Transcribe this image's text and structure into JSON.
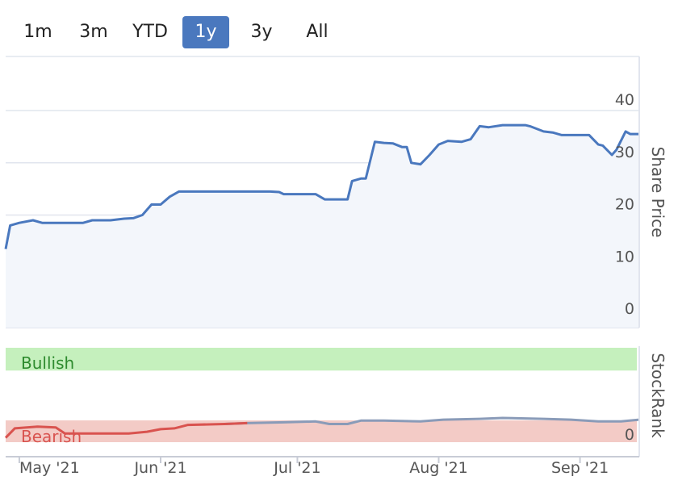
{
  "range_selector": {
    "buttons": [
      {
        "label": "1m",
        "active": false
      },
      {
        "label": "3m",
        "active": false
      },
      {
        "label": "YTD",
        "active": false
      },
      {
        "label": "1y",
        "active": true
      },
      {
        "label": "3y",
        "active": false
      },
      {
        "label": "All",
        "active": false
      }
    ]
  },
  "colors": {
    "price_line": "#4a78be",
    "price_fill": "#f3f6fb",
    "grid": "#e1e5ee",
    "bullish_band": "#c5f0bd",
    "bullish_text": "#2e8b2e",
    "bearish_band": "#f3cbc6",
    "bearish_text": "#d9534f",
    "rank_red": "#d9534f",
    "rank_gray": "#8a9bb8",
    "active_button": "#4a78be"
  },
  "chart_data": [
    {
      "type": "area",
      "ylabel": "Share Price",
      "ylim": [
        0,
        40
      ],
      "yticks": [
        0,
        10,
        20,
        30,
        40
      ],
      "x_axis": {
        "type": "date",
        "range": [
          "2021-04-28",
          "2021-09-14"
        ]
      },
      "series": [
        {
          "points": [
            [
              "2021-04-28",
              13.5
            ],
            [
              "2021-04-29",
              18.0
            ],
            [
              "2021-05-01",
              18.5
            ],
            [
              "2021-05-04",
              19.0
            ],
            [
              "2021-05-06",
              18.5
            ],
            [
              "2021-05-10",
              18.5
            ],
            [
              "2021-05-15",
              18.5
            ],
            [
              "2021-05-17",
              19.0
            ],
            [
              "2021-05-21",
              19.0
            ],
            [
              "2021-05-24",
              19.3
            ],
            [
              "2021-05-26",
              19.4
            ],
            [
              "2021-05-28",
              20.0
            ],
            [
              "2021-05-30",
              22.0
            ],
            [
              "2021-06-01",
              22.0
            ],
            [
              "2021-06-03",
              23.5
            ],
            [
              "2021-06-05",
              24.5
            ],
            [
              "2021-06-15",
              24.5
            ],
            [
              "2021-06-25",
              24.5
            ],
            [
              "2021-06-27",
              24.4
            ],
            [
              "2021-06-28",
              24.0
            ],
            [
              "2021-07-01",
              24.0
            ],
            [
              "2021-07-05",
              24.0
            ],
            [
              "2021-07-07",
              23.0
            ],
            [
              "2021-07-12",
              23.0
            ],
            [
              "2021-07-13",
              26.5
            ],
            [
              "2021-07-15",
              27.0
            ],
            [
              "2021-07-16",
              27.0
            ],
            [
              "2021-07-18",
              34.0
            ],
            [
              "2021-07-20",
              33.8
            ],
            [
              "2021-07-22",
              33.7
            ],
            [
              "2021-07-24",
              33.0
            ],
            [
              "2021-07-25",
              33.0
            ],
            [
              "2021-07-26",
              30.0
            ],
            [
              "2021-07-28",
              29.7
            ],
            [
              "2021-07-30",
              31.5
            ],
            [
              "2021-08-01",
              33.5
            ],
            [
              "2021-08-03",
              34.2
            ],
            [
              "2021-08-06",
              34.0
            ],
            [
              "2021-08-08",
              34.5
            ],
            [
              "2021-08-10",
              37.0
            ],
            [
              "2021-08-12",
              36.8
            ],
            [
              "2021-08-15",
              37.2
            ],
            [
              "2021-08-20",
              37.2
            ],
            [
              "2021-08-21",
              37.0
            ],
            [
              "2021-08-24",
              36.0
            ],
            [
              "2021-08-26",
              35.8
            ],
            [
              "2021-08-28",
              35.3
            ],
            [
              "2021-09-01",
              35.3
            ],
            [
              "2021-09-03",
              35.3
            ],
            [
              "2021-09-05",
              33.5
            ],
            [
              "2021-09-06",
              33.3
            ],
            [
              "2021-09-08",
              31.5
            ],
            [
              "2021-09-09",
              32.5
            ],
            [
              "2021-09-11",
              36.0
            ],
            [
              "2021-09-12",
              35.5
            ],
            [
              "2021-09-14",
              35.5
            ]
          ]
        }
      ]
    },
    {
      "type": "line",
      "ylabel": "StockRank",
      "yticks": [
        0
      ],
      "ylim": [
        0,
        100
      ],
      "bands": [
        {
          "label": "Bullish",
          "from": 75,
          "to": 100
        },
        {
          "label": "Bearish",
          "from": 0,
          "to": 25
        }
      ],
      "x_axis": {
        "type": "date",
        "range": [
          "2021-04-28",
          "2021-09-14"
        ]
      },
      "series": [
        {
          "points": [
            [
              "2021-04-28",
              5
            ],
            [
              "2021-04-30",
              16
            ],
            [
              "2021-05-05",
              18
            ],
            [
              "2021-05-09",
              17
            ],
            [
              "2021-05-11",
              10
            ],
            [
              "2021-05-14",
              10
            ],
            [
              "2021-05-25",
              10
            ],
            [
              "2021-05-29",
              12
            ],
            [
              "2021-06-01",
              15
            ],
            [
              "2021-06-04",
              16
            ],
            [
              "2021-06-07",
              20
            ],
            [
              "2021-06-15",
              21
            ],
            [
              "2021-06-20",
              22
            ],
            [
              "2021-06-28",
              23
            ],
            [
              "2021-07-05",
              24
            ],
            [
              "2021-07-08",
              21
            ],
            [
              "2021-07-12",
              21
            ],
            [
              "2021-07-15",
              25
            ],
            [
              "2021-07-20",
              25
            ],
            [
              "2021-07-28",
              24
            ],
            [
              "2021-08-02",
              26
            ],
            [
              "2021-08-10",
              27
            ],
            [
              "2021-08-15",
              28
            ],
            [
              "2021-08-24",
              27
            ],
            [
              "2021-08-30",
              26
            ],
            [
              "2021-09-05",
              24
            ],
            [
              "2021-09-10",
              24
            ],
            [
              "2021-09-14",
              26
            ]
          ]
        }
      ]
    }
  ],
  "x_axis_labels": [
    "May '21",
    "Jun '21",
    "Jul '21",
    "Aug '21",
    "Sep '21"
  ]
}
